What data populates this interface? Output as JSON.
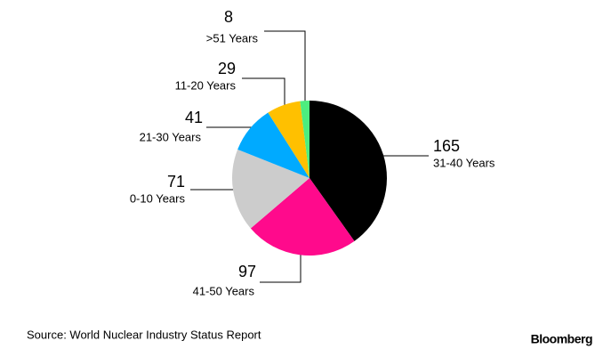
{
  "chart_data": {
    "type": "pie",
    "categories": [
      "31-40 Years",
      "41-50 Years",
      "0-10 Years",
      "21-30 Years",
      "11-20 Years",
      ">51 Years"
    ],
    "values": [
      165,
      97,
      71,
      41,
      29,
      8
    ],
    "colors": [
      "#000000",
      "#ff0a8c",
      "#cccccc",
      "#00aaff",
      "#ffc000",
      "#4ded7f"
    ],
    "source": "Source: World Nuclear Industry Status Report",
    "logo": "Bloomberg"
  }
}
